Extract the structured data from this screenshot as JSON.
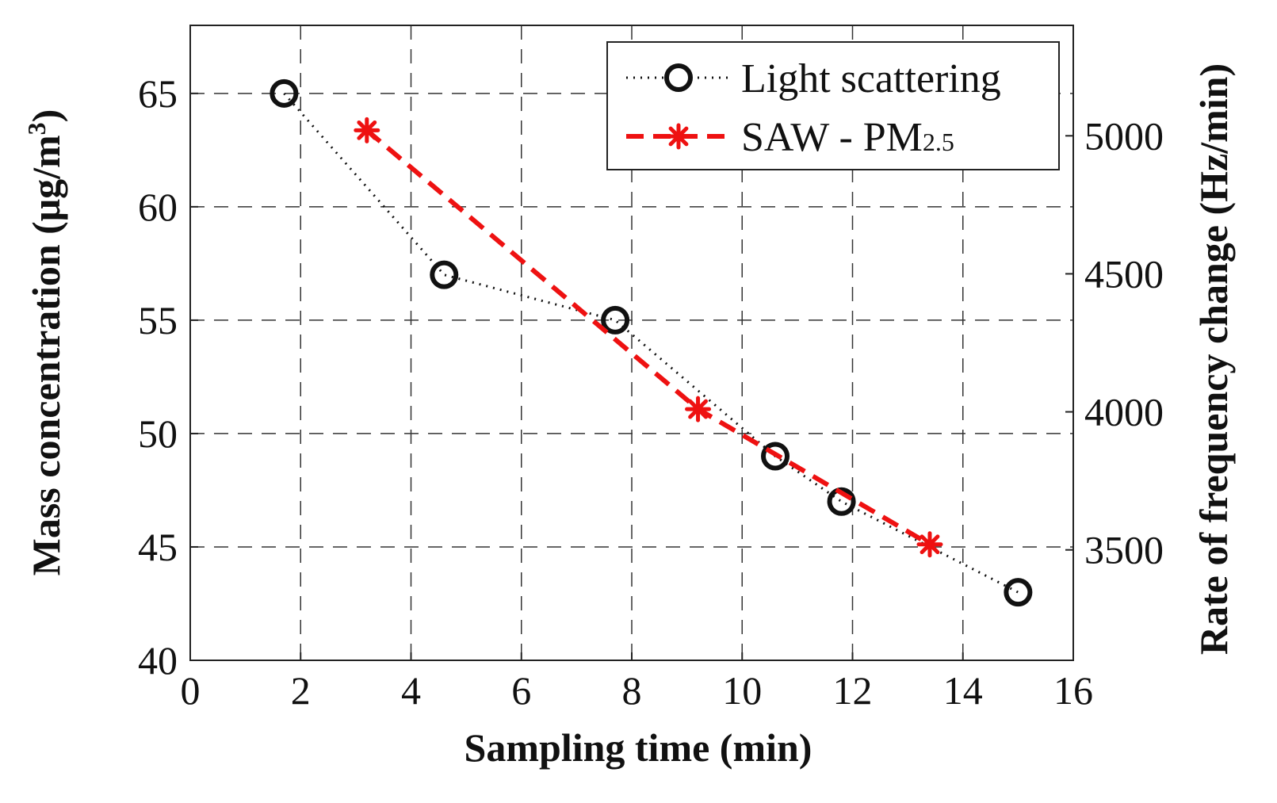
{
  "chart_data": {
    "type": "line",
    "title": "",
    "xlabel": "Sampling time (min)",
    "ylabel_left": {
      "main": "Mass concentration (μg/m",
      "sup": "3",
      "tail": ")"
    },
    "ylabel_right": "Rate of frequency change (Hz/min)",
    "xlim": [
      0,
      16
    ],
    "ylim_left": [
      40,
      68
    ],
    "ylim_right": [
      3100,
      5400
    ],
    "xticks": [
      0,
      2,
      4,
      6,
      8,
      10,
      12,
      14,
      16
    ],
    "xtick_labels": [
      "0",
      "2",
      "4",
      "6",
      "8",
      "10",
      "12",
      "14",
      "16"
    ],
    "yticks_left": [
      40,
      45,
      50,
      55,
      60,
      65
    ],
    "ytick_labels_left": [
      "40",
      "45",
      "50",
      "55",
      "60",
      "65"
    ],
    "yticks_right": [
      3500,
      4000,
      4500,
      5000
    ],
    "ytick_labels_right": [
      "3500",
      "4000",
      "4500",
      "5000"
    ],
    "grid": true,
    "legend_position": "top-right",
    "series": [
      {
        "name": "Light scattering",
        "axis": "left",
        "color": "#111111",
        "line_style": "dotted",
        "marker": "circle",
        "x": [
          1.7,
          4.6,
          7.7,
          10.6,
          11.8,
          15.0
        ],
        "y": [
          65,
          57,
          55,
          49,
          47,
          43
        ]
      },
      {
        "name": "SAW - PM2.5",
        "legend_main": "SAW - PM",
        "legend_sub": "2.5",
        "axis": "right",
        "color": "#ee1111",
        "line_style": "dashed",
        "marker": "asterisk",
        "x": [
          3.2,
          9.2,
          13.4
        ],
        "y": [
          5020,
          4010,
          3520
        ]
      }
    ]
  }
}
